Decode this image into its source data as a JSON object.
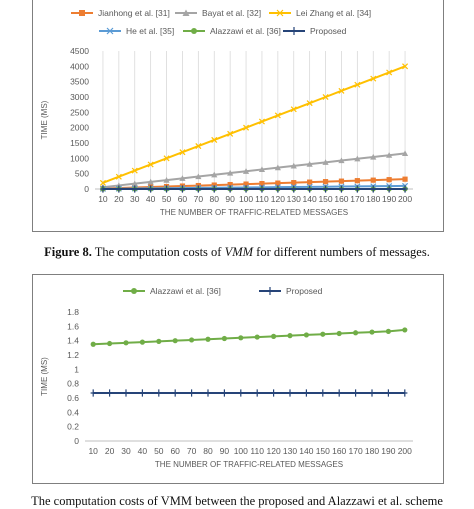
{
  "figure8": {
    "caption_label": "Figure 8.",
    "caption_text_before": "The computation costs of ",
    "caption_italic": "VMM",
    "caption_text_after": " for different numbers of messages."
  },
  "figure9": {
    "caption_text": "The computation costs of VMM between the proposed and Alazzawi et al. scheme"
  },
  "chart_data": [
    {
      "type": "line",
      "title": "",
      "xlabel": "THE NUMBER OF TRAFFIC-RELATED MESSAGES",
      "ylabel": "TIME (MS)",
      "ylim": [
        0,
        4500
      ],
      "yticks": [
        "0",
        "500",
        "1000",
        "1500",
        "2000",
        "2500",
        "3000",
        "3500",
        "4000",
        "4500"
      ],
      "categories": [
        "10",
        "20",
        "30",
        "40",
        "50",
        "60",
        "70",
        "80",
        "90",
        "100",
        "110",
        "120",
        "130",
        "140",
        "150",
        "160",
        "170",
        "180",
        "190",
        "200"
      ],
      "grid": "vertical",
      "legend": "top",
      "series": [
        {
          "name": "Jianhong et al. [31]",
          "color": "#ed7d31",
          "marker": "square",
          "values": [
            16,
            32,
            48,
            64,
            80,
            96,
            112,
            128,
            144,
            160,
            176,
            192,
            208,
            224,
            240,
            256,
            272,
            288,
            304,
            320
          ]
        },
        {
          "name": "Bayat et al. [32]",
          "color": "#a5a5a5",
          "marker": "triangle",
          "values": [
            58,
            116,
            174,
            232,
            290,
            348,
            406,
            464,
            522,
            580,
            638,
            696,
            754,
            812,
            870,
            928,
            986,
            1044,
            1102,
            1160
          ]
        },
        {
          "name": "Lei Zhang et al. [34]",
          "color": "#ffc000",
          "marker": "x",
          "values": [
            200,
            400,
            600,
            800,
            1000,
            1200,
            1400,
            1600,
            1800,
            2000,
            2200,
            2400,
            2600,
            2800,
            3000,
            3200,
            3400,
            3600,
            3800,
            4000
          ]
        },
        {
          "name": "He et al. [35]",
          "color": "#5b9bd5",
          "marker": "x",
          "values": [
            5,
            10,
            15,
            20,
            25,
            30,
            35,
            40,
            45,
            50,
            55,
            60,
            65,
            70,
            75,
            80,
            85,
            90,
            95,
            100
          ]
        },
        {
          "name": "Alazzawi et al. [36]",
          "color": "#70ad47",
          "marker": "circle",
          "values": [
            1.35,
            1.36,
            1.37,
            1.38,
            1.39,
            1.4,
            1.41,
            1.42,
            1.43,
            1.44,
            1.45,
            1.46,
            1.47,
            1.48,
            1.49,
            1.5,
            1.51,
            1.52,
            1.53,
            1.55
          ]
        },
        {
          "name": "Proposed",
          "color": "#264478",
          "marker": "plus",
          "values": [
            0.67,
            0.67,
            0.67,
            0.67,
            0.67,
            0.67,
            0.67,
            0.67,
            0.67,
            0.67,
            0.67,
            0.67,
            0.67,
            0.67,
            0.67,
            0.67,
            0.67,
            0.67,
            0.67,
            0.67
          ]
        }
      ]
    },
    {
      "type": "line",
      "title": "",
      "xlabel": "THE NUMBER OF TRAFFIC-RELATED MESSAGES",
      "ylabel": "TIME (MS)",
      "ylim": [
        0,
        1.8
      ],
      "yticks": [
        "0",
        "0.2",
        "0.4",
        "0.6",
        "0.8",
        "1",
        "1.2",
        "1.4",
        "1.6",
        "1.8"
      ],
      "categories": [
        "10",
        "20",
        "30",
        "40",
        "50",
        "60",
        "70",
        "80",
        "90",
        "100",
        "110",
        "120",
        "130",
        "140",
        "150",
        "160",
        "170",
        "180",
        "190",
        "200"
      ],
      "grid": "none",
      "legend": "top",
      "series": [
        {
          "name": "Alazzawi et al. [36]",
          "color": "#70ad47",
          "marker": "circle",
          "values": [
            1.35,
            1.36,
            1.37,
            1.38,
            1.39,
            1.4,
            1.41,
            1.42,
            1.43,
            1.44,
            1.45,
            1.46,
            1.47,
            1.48,
            1.49,
            1.5,
            1.51,
            1.52,
            1.53,
            1.55
          ]
        },
        {
          "name": "Proposed",
          "color": "#264478",
          "marker": "plus",
          "values": [
            0.67,
            0.67,
            0.67,
            0.67,
            0.67,
            0.67,
            0.67,
            0.67,
            0.67,
            0.67,
            0.67,
            0.67,
            0.67,
            0.67,
            0.67,
            0.67,
            0.67,
            0.67,
            0.67,
            0.67
          ]
        }
      ]
    }
  ]
}
